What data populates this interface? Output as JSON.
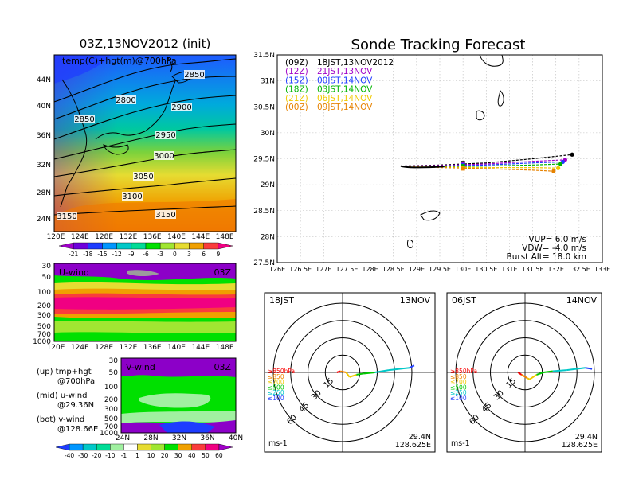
{
  "map_panel": {
    "title": "03Z,13NOV2012 (init)",
    "label": "temp(C)+hgt(m)@700hPa",
    "contour_labels": [
      "2850",
      "2800",
      "2900",
      "2850",
      "2950",
      "3000",
      "3050",
      "3100",
      "3150",
      "3150"
    ],
    "lat_ticks": [
      "44N",
      "40N",
      "36N",
      "32N",
      "28N",
      "24N"
    ],
    "lon_ticks": [
      "120E",
      "124E",
      "128E",
      "132E",
      "136E",
      "140E",
      "144E",
      "148E"
    ],
    "colorbar_labels": [
      "-21",
      "-18",
      "-15",
      "-12",
      "-9",
      "-6",
      "-3",
      "0",
      "3",
      "6",
      "9"
    ],
    "colorbar_colors": [
      "#a000c8",
      "#6e00dc",
      "#1e3cff",
      "#0096ff",
      "#00c8c8",
      "#00dc96",
      "#00e000",
      "#a0e632",
      "#e6dc32",
      "#f0a000",
      "#fa3c3c",
      "#f00082"
    ]
  },
  "uwind_panel": {
    "label": "U-wind",
    "time": "03Z",
    "p_ticks": [
      "30",
      "50",
      "100",
      "200",
      "300",
      "500",
      "700",
      "1000"
    ],
    "lon_ticks": [
      "120E",
      "124E",
      "128E",
      "132E",
      "136E",
      "140E",
      "144E",
      "148E"
    ]
  },
  "vwind_panel": {
    "label": "V-wind",
    "time": "03Z",
    "p_ticks": [
      "30",
      "50",
      "100",
      "200",
      "300",
      "500",
      "700",
      "1000"
    ],
    "lat_ticks": [
      "24N",
      "28N",
      "32N",
      "36N",
      "40N"
    ],
    "colorbar_labels": [
      "-40",
      "-30",
      "-20",
      "-10",
      "-1",
      "1",
      "10",
      "20",
      "30",
      "40",
      "50",
      "60"
    ],
    "colorbar_colors": [
      "#1e3cff",
      "#0096ff",
      "#00c8c8",
      "#00dc96",
      "#a0f0a0",
      "#ffffff",
      "#e6dc32",
      "#a0e632",
      "#00e000",
      "#f0a000",
      "#fa3c3c",
      "#f00082",
      "#a000c8"
    ]
  },
  "legend_notes": {
    "up": "(up) tmp+hgt",
    "up2": "@700hPa",
    "mid": "(mid) u-wind",
    "mid2": "@29.36N",
    "bot": "(bot) v-wind",
    "bot2": "@128.66E"
  },
  "track_panel": {
    "title": "Sonde Tracking Forecast",
    "lat_ticks": [
      "31.5N",
      "31N",
      "30.5N",
      "30N",
      "29.5N",
      "29N",
      "28.5N",
      "28N",
      "27.5N"
    ],
    "lon_ticks": [
      "126E",
      "126.5E",
      "127E",
      "127.5E",
      "128E",
      "128.5E",
      "129E",
      "129.5E",
      "130E",
      "130.5E",
      "131E",
      "131.5E",
      "132E",
      "132.5E",
      "133E"
    ],
    "legend": [
      {
        "code": "(09Z)",
        "text": "18JST,13NOV2012",
        "color": "#000000"
      },
      {
        "code": "(12Z)",
        "text": "21JST,13NOV",
        "color": "#a000c8"
      },
      {
        "code": "(15Z)",
        "text": "00JST,14NOV",
        "color": "#1e3cff"
      },
      {
        "code": "(18Z)",
        "text": "03JST,14NOV",
        "color": "#00b400"
      },
      {
        "code": "(21Z)",
        "text": "06JST,14NOV",
        "color": "#f0c800"
      },
      {
        "code": "(00Z)",
        "text": "09JST,14NOV",
        "color": "#e68200"
      }
    ],
    "params": {
      "vup": "VUP=  6.0  m/s",
      "vdw": "VDW= -4.0  m/s",
      "burst": "Burst Alt=  18.0  km"
    }
  },
  "chart_data": [
    {
      "type": "line",
      "title": "Sonde Tracking Forecast",
      "xlim": [
        126,
        133
      ],
      "ylim": [
        27.5,
        31.5
      ],
      "series": [
        {
          "name": "(09Z) 18JST,13NOV2012",
          "color": "#000000",
          "x": [
            128.66,
            129.5,
            130.5,
            131.5,
            132.35
          ],
          "y": [
            29.36,
            29.38,
            29.42,
            29.5,
            29.58
          ]
        },
        {
          "name": "(12Z) 21JST,13NOV",
          "color": "#a000c8",
          "x": [
            128.66,
            129.5,
            130.5,
            131.5,
            132.2
          ],
          "y": [
            29.36,
            29.37,
            29.4,
            29.45,
            29.48
          ]
        },
        {
          "name": "(15Z) 00JST,14NOV",
          "color": "#1e3cff",
          "x": [
            128.66,
            129.5,
            130.5,
            131.5,
            132.15
          ],
          "y": [
            29.36,
            29.36,
            29.38,
            29.42,
            29.44
          ]
        },
        {
          "name": "(18Z) 03JST,14NOV",
          "color": "#00b400",
          "x": [
            128.66,
            129.5,
            130.5,
            131.5,
            132.1
          ],
          "y": [
            29.36,
            29.35,
            29.36,
            29.38,
            29.4
          ]
        },
        {
          "name": "(21Z) 06JST,14NOV",
          "color": "#f0c800",
          "x": [
            128.66,
            129.5,
            130.5,
            131.5,
            132.05
          ],
          "y": [
            29.36,
            29.34,
            29.33,
            29.33,
            29.32
          ]
        },
        {
          "name": "(00Z) 09JST,14NOV",
          "color": "#e68200",
          "x": [
            128.66,
            129.5,
            130.5,
            131.5,
            131.95
          ],
          "y": [
            29.36,
            29.33,
            29.31,
            29.28,
            29.26
          ]
        }
      ]
    },
    {
      "type": "line",
      "title": "hodograph",
      "time_label": "18JST",
      "date_label": "13NOV",
      "location": "29.4N",
      "location2": "128.625E",
      "unit": "ms-1",
      "ring_labels": [
        "15",
        "30",
        "45",
        "60"
      ],
      "layers": [
        {
          "name": "≥850hPa",
          "color": "#fa0000"
        },
        {
          "name": "≤850",
          "color": "#f08200"
        },
        {
          "name": "≤700",
          "color": "#f0c800"
        },
        {
          "name": "≤500",
          "color": "#00c800"
        },
        {
          "name": "≤250",
          "color": "#00c8c8"
        },
        {
          "name": "≤100",
          "color": "#1e3cff"
        }
      ],
      "u": [
        -5,
        -2,
        3,
        6,
        12,
        18,
        28,
        40,
        58,
        62
      ],
      "v": [
        0,
        1,
        0,
        -4,
        -2,
        -1,
        0,
        2,
        4,
        6
      ]
    },
    {
      "type": "line",
      "title": "hodograph",
      "time_label": "06JST",
      "date_label": "14NOV",
      "location": "29.4N",
      "location2": "128.625E",
      "unit": "ms-1",
      "ring_labels": [
        "15",
        "30",
        "45",
        "60"
      ],
      "layers": [
        {
          "name": "≥850hPa",
          "color": "#fa0000"
        },
        {
          "name": "≤850",
          "color": "#f08200"
        },
        {
          "name": "≤700",
          "color": "#f0c800"
        },
        {
          "name": "≤500",
          "color": "#00c800"
        },
        {
          "name": "≤250",
          "color": "#00c8c8"
        },
        {
          "name": "≤100",
          "color": "#1e3cff"
        }
      ],
      "u": [
        -6,
        -3,
        2,
        4,
        10,
        16,
        24,
        36,
        52,
        58
      ],
      "v": [
        0,
        -2,
        -5,
        -6,
        -2,
        0,
        1,
        2,
        4,
        3
      ]
    }
  ]
}
